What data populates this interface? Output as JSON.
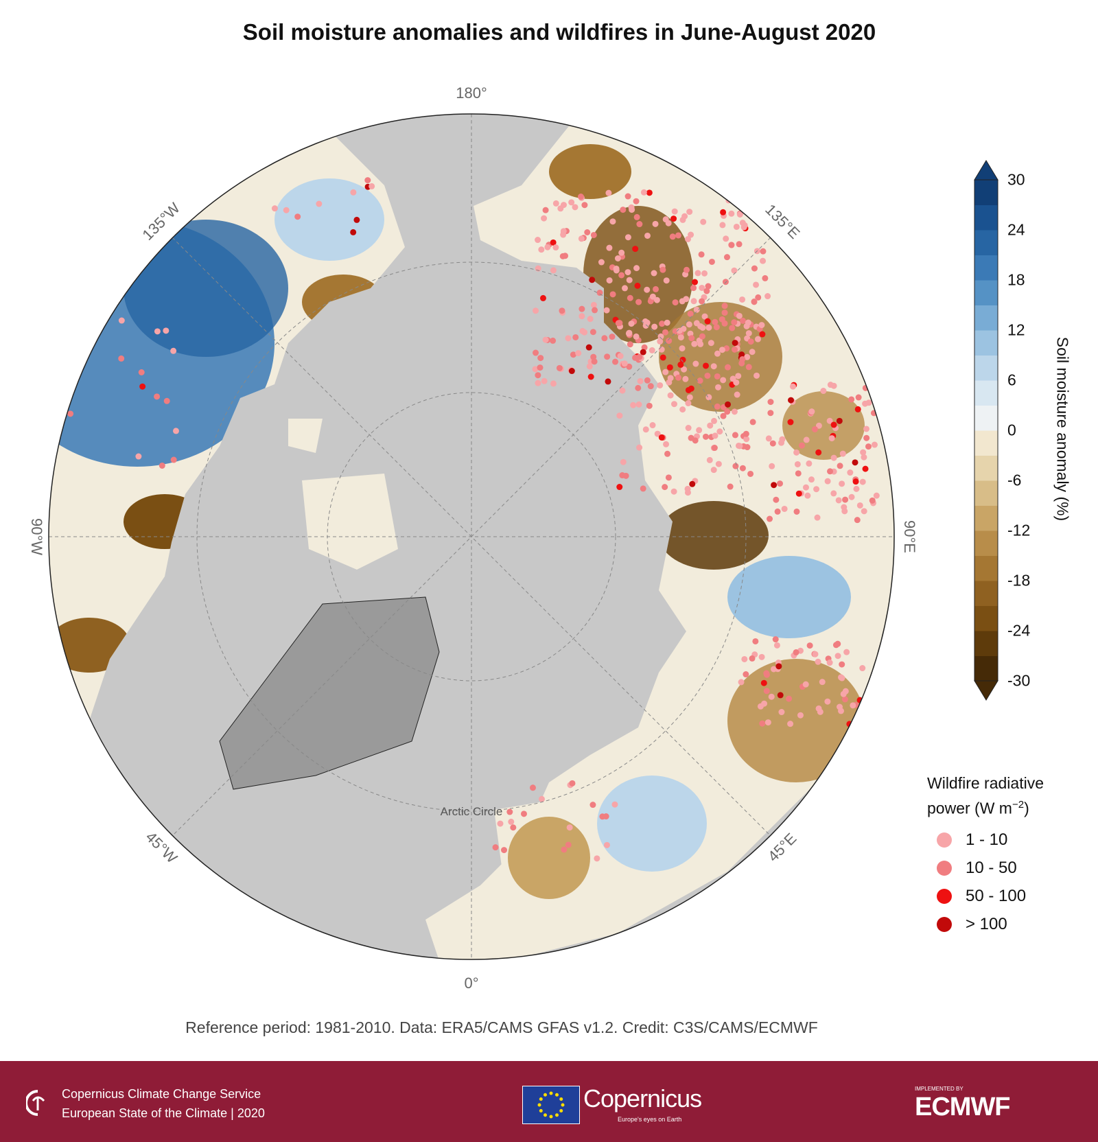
{
  "title": "Soil moisture anomalies and wildfires in June-August 2020",
  "map": {
    "longitude_labels": {
      "n": "180°",
      "s": "0°",
      "w": "90°W",
      "e": "90°E",
      "nw": "135°W",
      "ne": "135°E",
      "sw": "45°W",
      "se": "45°E"
    },
    "arctic_circle_label": "Arctic Circle",
    "ocean_color": "#c8c8c8",
    "greenland_color": "#9a9a9a"
  },
  "colorbar": {
    "title": "Soil moisture anomaly (%)",
    "range": [
      -30,
      30
    ],
    "step": 3,
    "ticks": [
      "30",
      "24",
      "18",
      "12",
      "6",
      "0",
      "-6",
      "-12",
      "-18",
      "-24",
      "-30"
    ],
    "colors": [
      "#452a07",
      "#5e3b0b",
      "#7a4f13",
      "#8f6121",
      "#a57733",
      "#b88d4a",
      "#c9a566",
      "#d8bd88",
      "#e6d4ac",
      "#f2e7cf",
      "#eef2f4",
      "#d8e7f1",
      "#bcd6ea",
      "#9cc3e1",
      "#79acd5",
      "#5592c5",
      "#3b7ab6",
      "#2765a3",
      "#1a5290",
      "#113f76"
    ]
  },
  "wildfire_legend": {
    "title_line1": "Wildfire radiative",
    "title_line2": "power (W m",
    "title_sup": "−2",
    "title_close": ")",
    "items": [
      {
        "label": "1 - 10",
        "color": "#f7a5a8"
      },
      {
        "label": "10 - 50",
        "color": "#f07d80"
      },
      {
        "label": "50 - 100",
        "color": "#ee1111"
      },
      {
        "label": "> 100",
        "color": "#c10a0a"
      }
    ]
  },
  "reference": "Reference period: 1981-2010. Data: ERA5/CAMS GFAS v1.2. Credit: C3S/CAMS/ECMWF",
  "footer": {
    "line1": "Copernicus Climate Change Service",
    "line2": "European State of the Climate | 2020",
    "copernicus_logo": "Copernicus",
    "copernicus_tagline": "Europe's eyes on Earth",
    "implemented_by": "IMPLEMENTED BY",
    "ecmwf_logo": "ECMWF",
    "background": "#8f1c37"
  }
}
